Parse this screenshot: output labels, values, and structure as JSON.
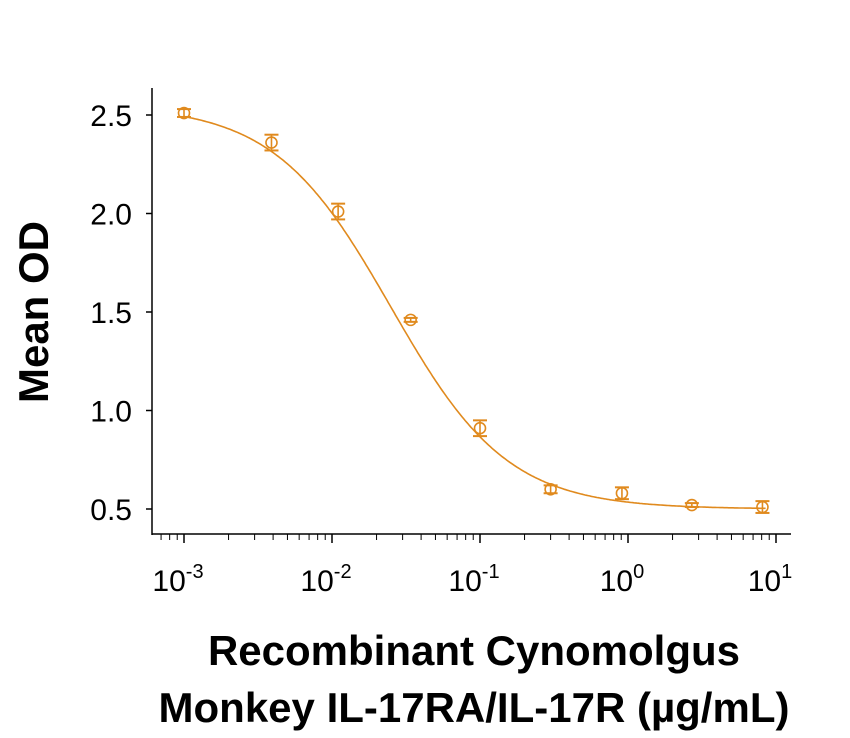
{
  "chart_data": {
    "type": "scatter",
    "title": "",
    "xlabel": [
      "Recombinant Cynomolgus",
      "Monkey IL-17RA/IL-17R (µg/mL)"
    ],
    "ylabel": "Mean OD",
    "x_scale": "log",
    "xlim": [
      0.0007,
      14
    ],
    "ylim": [
      0.32,
      2.8
    ],
    "x_ticks": [
      {
        "value": 0.001,
        "base": "10",
        "exp": "-3"
      },
      {
        "value": 0.01,
        "base": "10",
        "exp": "-2"
      },
      {
        "value": 0.1,
        "base": "10",
        "exp": "-1"
      },
      {
        "value": 1,
        "base": "10",
        "exp": "0"
      },
      {
        "value": 10,
        "base": "10",
        "exp": "1"
      }
    ],
    "y_ticks": [
      {
        "value": 0.5,
        "label": "0.5"
      },
      {
        "value": 1.0,
        "label": "1.0"
      },
      {
        "value": 1.5,
        "label": "1.5"
      },
      {
        "value": 2.0,
        "label": "2.0"
      },
      {
        "value": 2.5,
        "label": "2.5"
      }
    ],
    "grid": false,
    "legend": "none",
    "color": "#E08A1E",
    "series": [
      {
        "x": [
          0.001,
          0.0039,
          0.011,
          0.034,
          0.1,
          0.3,
          0.91,
          2.7,
          8.1
        ],
        "y": [
          2.51,
          2.36,
          2.01,
          1.46,
          0.91,
          0.6,
          0.58,
          0.52,
          0.51
        ],
        "error": [
          0.02,
          0.04,
          0.04,
          0.01,
          0.04,
          0.02,
          0.03,
          0.01,
          0.03
        ],
        "fit": "four-parameter logistic curve"
      }
    ]
  }
}
